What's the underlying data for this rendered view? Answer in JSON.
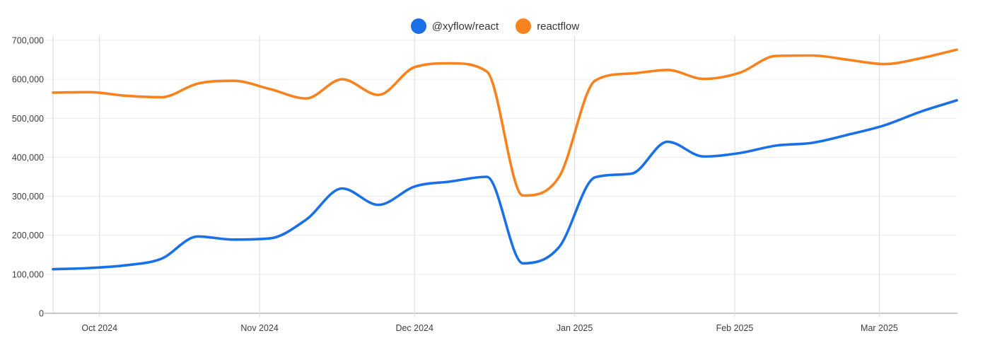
{
  "chart_data": {
    "type": "line",
    "title": "",
    "xlabel": "",
    "ylabel": "",
    "legend_position": "top-center",
    "grid": true,
    "x": [
      "2024-09-22",
      "2024-09-29",
      "2024-10-06",
      "2024-10-13",
      "2024-10-20",
      "2024-10-27",
      "2024-11-03",
      "2024-11-10",
      "2024-11-17",
      "2024-11-24",
      "2024-12-01",
      "2024-12-08",
      "2024-12-15",
      "2024-12-22",
      "2024-12-29",
      "2025-01-05",
      "2025-01-12",
      "2025-01-19",
      "2025-01-26",
      "2025-02-02",
      "2025-02-09",
      "2025-02-16",
      "2025-02-23",
      "2025-03-02",
      "2025-03-09",
      "2025-03-16"
    ],
    "series": [
      {
        "name": "@xyflow/react",
        "color": "#1a70e6",
        "values": [
          113000,
          116000,
          123000,
          140000,
          197000,
          189000,
          192000,
          240000,
          320000,
          278000,
          325000,
          338000,
          350000,
          128000,
          170000,
          349000,
          358000,
          440000,
          402000,
          411000,
          430000,
          437000,
          458000,
          482000,
          517000,
          546000
        ]
      },
      {
        "name": "reactflow",
        "color": "#f7821e",
        "values": [
          566000,
          567000,
          558000,
          554000,
          589000,
          596000,
          575000,
          551000,
          600000,
          560000,
          631000,
          641000,
          620000,
          302000,
          350000,
          597000,
          615000,
          624000,
          601000,
          617000,
          660000,
          661000,
          650000,
          639000,
          654000,
          676000
        ]
      }
    ],
    "x_ticks": [
      {
        "date": "2024-10-01",
        "label": "Oct 2024"
      },
      {
        "date": "2024-11-01",
        "label": "Nov 2024"
      },
      {
        "date": "2024-12-01",
        "label": "Dec 2024"
      },
      {
        "date": "2025-01-01",
        "label": "Jan 2025"
      },
      {
        "date": "2025-02-01",
        "label": "Feb 2025"
      },
      {
        "date": "2025-03-01",
        "label": "Mar 2025"
      }
    ],
    "y_axis": {
      "min": 0,
      "max": 700000,
      "step": 100000,
      "tick_labels": [
        "0",
        "100,000",
        "200,000",
        "300,000",
        "400,000",
        "500,000",
        "600,000",
        "700,000"
      ]
    },
    "style": {
      "background": "#ffffff",
      "h_grid_color": "#ececec",
      "v_grid_color": "#dcdcdc",
      "y_axis_line_color": "#d4d4d4",
      "zero_axis_color": "#c8c8c8",
      "tick_label_color": "#3d3d3d",
      "legend_text_color": "#333333",
      "line_width": 3.6
    }
  }
}
